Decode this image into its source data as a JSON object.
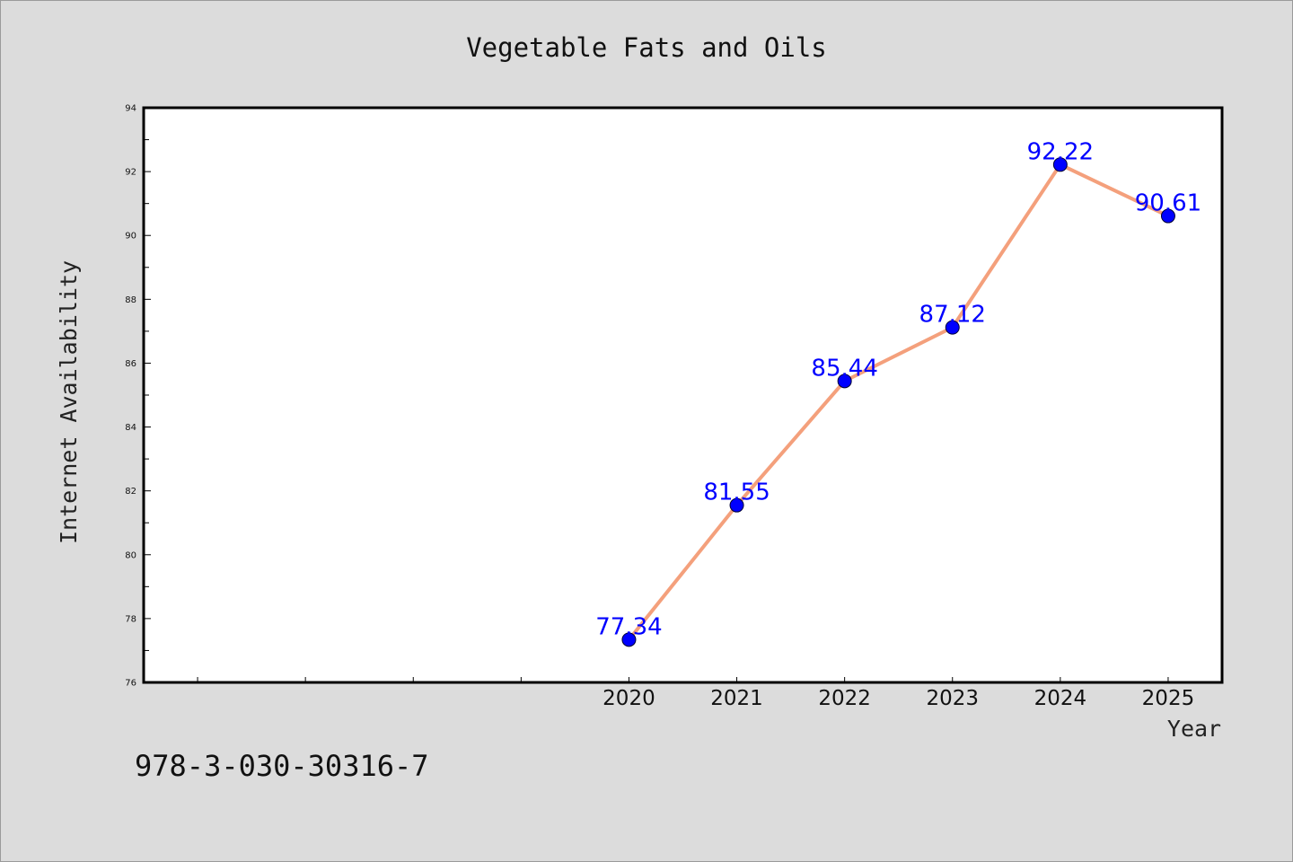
{
  "chart_data": {
    "type": "line",
    "title": "Vegetable Fats and Oils",
    "xlabel": "Year",
    "ylabel": "Internet Availability",
    "categories": [
      "2020",
      "2021",
      "2022",
      "2023",
      "2024",
      "2025"
    ],
    "x_slots": 10,
    "values": [
      77.34,
      81.55,
      85.44,
      87.12,
      92.22,
      90.61
    ],
    "data_labels": [
      "77.34",
      "81.55",
      "85.44",
      "87.12",
      "92.22",
      "90.61"
    ],
    "ylim": [
      76,
      94
    ],
    "yticks": [
      "76",
      "78",
      "80",
      "82",
      "84",
      "86",
      "88",
      "90",
      "92",
      "94"
    ],
    "grid": false,
    "legend": "none",
    "line_color": "#f4a07c",
    "marker_color": "#0000ff",
    "label_color": "#0000ff"
  },
  "footer": {
    "isbn": "978-3-030-30316-7"
  }
}
